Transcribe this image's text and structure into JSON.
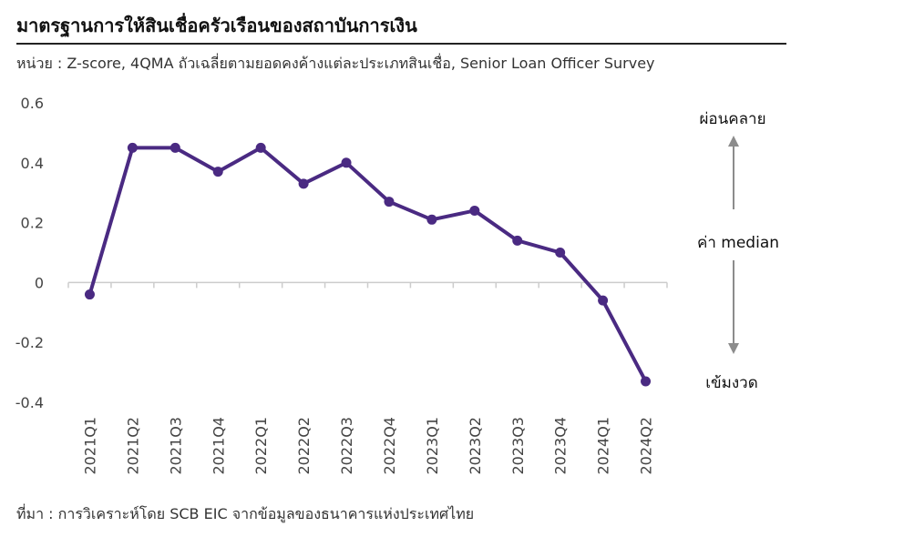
{
  "header": {
    "title": "มาตรฐานการให้สินเชื่อครัวเรือนของสถาบันการเงิน",
    "subtitle": "หน่วย : Z-score, 4QMA ถัวเฉลี่ยตามยอดคงค้างแต่ละประเภทสินเชื่อ, Senior Loan Officer Survey"
  },
  "footer": {
    "source": "ที่มา : การวิเคราะห์โดย SCB EIC จากข้อมูลของธนาคารแห่งประเทศไทย"
  },
  "annotations": {
    "top": "ผ่อนคลาย",
    "middle": "ค่า median",
    "bottom": "เข้มงวด"
  },
  "colors": {
    "line": "#4a2a82",
    "axis": "#cccccc",
    "arrow": "#8c8c8c"
  },
  "chart_data": {
    "type": "line",
    "categories": [
      "2021Q1",
      "2021Q2",
      "2021Q3",
      "2021Q4",
      "2022Q1",
      "2022Q2",
      "2022Q3",
      "2022Q4",
      "2023Q1",
      "2023Q2",
      "2023Q3",
      "2023Q4",
      "2024Q1",
      "2024Q2"
    ],
    "series": [
      {
        "values": [
          -0.04,
          0.45,
          0.45,
          0.37,
          0.45,
          0.33,
          0.4,
          0.27,
          0.21,
          0.24,
          0.14,
          0.1,
          -0.06,
          -0.33
        ]
      }
    ],
    "yticks": [
      0.6,
      0.4,
      0.2,
      0,
      -0.2,
      -0.4
    ],
    "ytick_labels": [
      "0.6",
      "0.4",
      "0.2",
      "0",
      "-0.2",
      "-0.4"
    ],
    "ylim": [
      -0.4,
      0.6
    ],
    "grid": false
  }
}
